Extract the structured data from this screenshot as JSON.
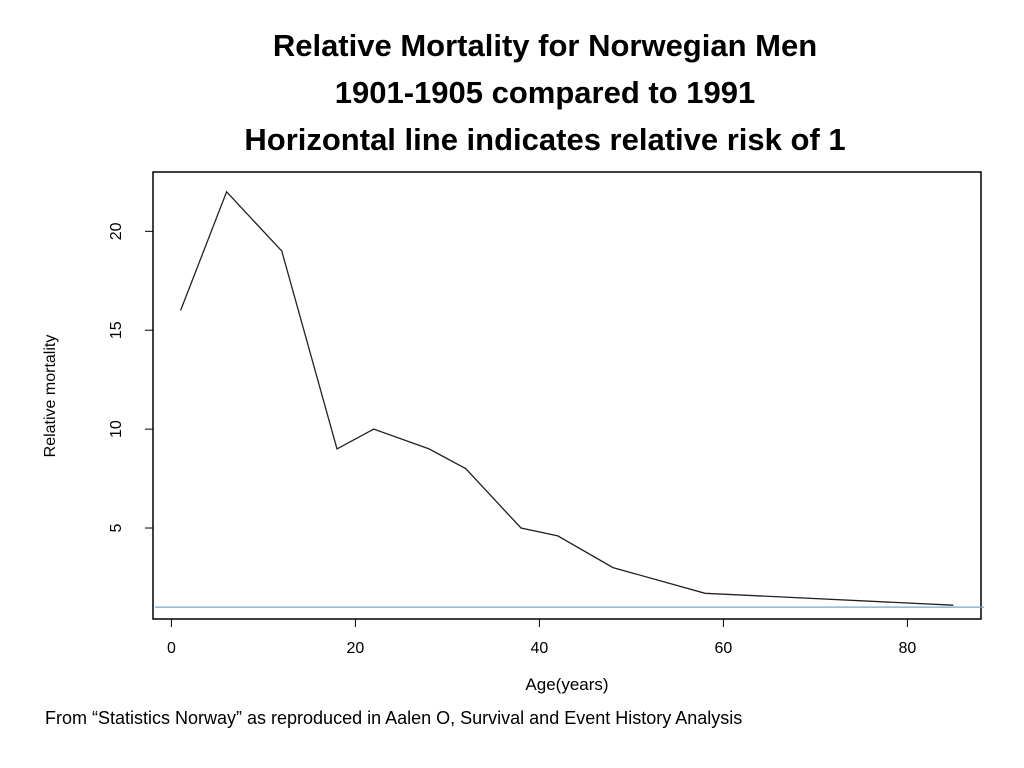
{
  "title_lines": [
    "Relative Mortality for Norwegian Men",
    "1901-1905 compared to 1991",
    "Horizontal line indicates relative risk of 1"
  ],
  "caption": "From “Statistics Norway” as reproduced in Aalen O, Survival and Event History Analysis",
  "chart_data": {
    "type": "line",
    "title": "Relative Mortality for Norwegian Men 1901-1905 compared to 1991",
    "xlabel": "Age(years)",
    "ylabel": "Relative mortality",
    "xlim": [
      -2,
      88
    ],
    "ylim": [
      0.4,
      23.0
    ],
    "xticks": [
      0,
      20,
      40,
      60,
      80
    ],
    "yticks": [
      5,
      10,
      15,
      20
    ],
    "grid": false,
    "series": [
      {
        "color": "#222222",
        "x": [
          1,
          6,
          12,
          18,
          22,
          28,
          32,
          38,
          42,
          48,
          58,
          85
        ],
        "y": [
          16,
          22,
          19,
          9,
          10,
          9,
          8,
          5,
          4.6,
          3,
          1.7,
          1.1
        ]
      }
    ],
    "reference_line": {
      "y": 1,
      "color": "#7aa3c9"
    }
  }
}
